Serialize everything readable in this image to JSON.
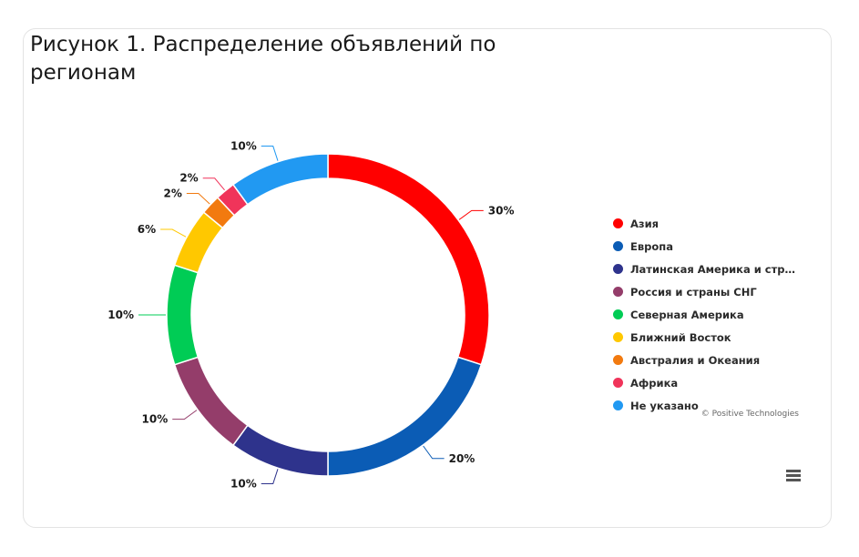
{
  "figure": {
    "title": "Рисунок 1. Распределение объявлений по регионам",
    "credits": "© Positive Technologies"
  },
  "chart_data": {
    "type": "pie",
    "variant": "donut",
    "title": "Рисунок 1. Распределение объявлений по регионам",
    "legend_position": "right",
    "slices": [
      {
        "name": "Азия",
        "value": 30,
        "label": "30%",
        "color": "#ff0000"
      },
      {
        "name": "Европа",
        "value": 20,
        "label": "20%",
        "color": "#0b5cb5"
      },
      {
        "name": "Латинская Америка и стран…",
        "value": 10,
        "label": "10%",
        "color": "#2e338c"
      },
      {
        "name": "Россия и страны СНГ",
        "value": 10,
        "label": "10%",
        "color": "#943d6a"
      },
      {
        "name": "Северная Америка",
        "value": 10,
        "label": "10%",
        "color": "#00cc55"
      },
      {
        "name": "Ближний Восток",
        "value": 6,
        "label": "6%",
        "color": "#ffc800"
      },
      {
        "name": "Австралия и Океания",
        "value": 2,
        "label": "2%",
        "color": "#f27a0f"
      },
      {
        "name": "Африка",
        "value": 2,
        "label": "2%",
        "color": "#f0345a"
      },
      {
        "name": "Не указано",
        "value": 10,
        "label": "10%",
        "color": "#2199f2"
      }
    ]
  }
}
